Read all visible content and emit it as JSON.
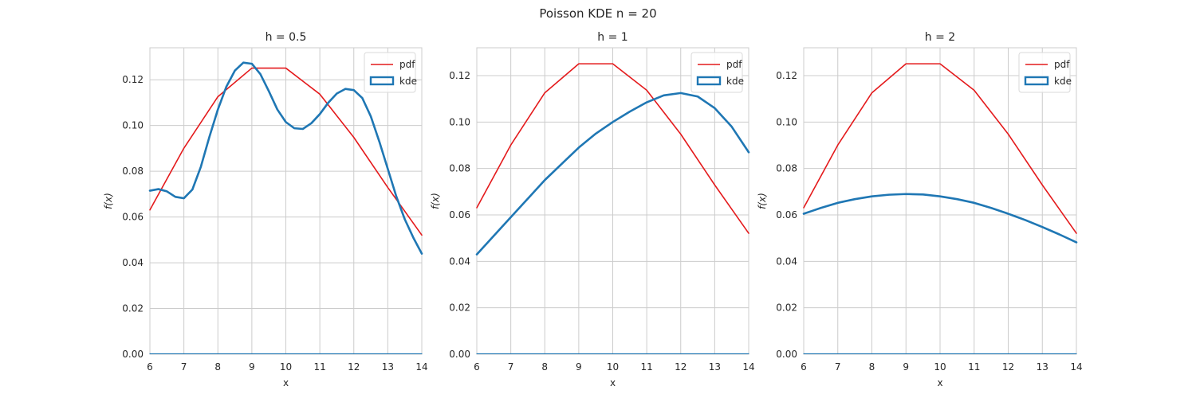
{
  "chart_data": {
    "suptitle": "Poisson KDE n = 20",
    "panels": [
      {
        "title": "h = 0.5",
        "xlabel": "x",
        "ylabel": "f(x)",
        "xlim": [
          6,
          14
        ],
        "ylim": [
          0,
          0.134
        ],
        "xticks": [
          6,
          7,
          8,
          9,
          10,
          11,
          12,
          13,
          14
        ],
        "xtick_labels": [
          "6",
          "7",
          "8",
          "9",
          "10",
          "11",
          "12",
          "13",
          "14"
        ],
        "yticks": [
          0,
          0.02,
          0.04,
          0.06,
          0.08,
          0.1,
          0.12
        ],
        "ytick_labels": [
          "0.00",
          "0.02",
          "0.04",
          "0.06",
          "0.08",
          "0.10",
          "0.12"
        ],
        "legend": [
          "pdf",
          "kde"
        ],
        "series": [
          {
            "name": "pdf",
            "type": "line",
            "x": [
              6,
              7,
              8,
              9,
              10,
              11,
              12,
              13,
              14
            ],
            "y": [
              0.0631,
              0.0901,
              0.1126,
              0.1251,
              0.1251,
              0.1137,
              0.0948,
              0.0729,
              0.0521
            ]
          },
          {
            "name": "kde",
            "type": "line",
            "x": [
              6,
              6.25,
              6.5,
              6.75,
              7,
              7.25,
              7.5,
              7.75,
              8,
              8.25,
              8.5,
              8.75,
              9,
              9.25,
              9.5,
              9.75,
              10,
              10.25,
              10.5,
              10.75,
              11,
              11.25,
              11.5,
              11.75,
              12,
              12.25,
              12.5,
              12.75,
              13,
              13.25,
              13.5,
              13.75,
              14
            ],
            "y": [
              0.0715,
              0.0722,
              0.0712,
              0.0688,
              0.0682,
              0.072,
              0.082,
              0.095,
              0.107,
              0.117,
              0.124,
              0.1275,
              0.127,
              0.1225,
              0.115,
              0.107,
              0.1015,
              0.0988,
              0.0985,
              0.101,
              0.105,
              0.11,
              0.114,
              0.116,
              0.1155,
              0.112,
              0.104,
              0.093,
              0.081,
              0.069,
              0.059,
              0.051,
              0.044
            ]
          },
          {
            "name": "baseline",
            "type": "line",
            "x": [
              6,
              14
            ],
            "y": [
              0.0002,
              0.0002
            ]
          }
        ]
      },
      {
        "title": "h = 1",
        "xlabel": "x",
        "ylabel": "f(x)",
        "xlim": [
          6,
          14
        ],
        "ylim": [
          0,
          0.132
        ],
        "xticks": [
          6,
          7,
          8,
          9,
          10,
          11,
          12,
          13,
          14
        ],
        "xtick_labels": [
          "6",
          "7",
          "8",
          "9",
          "10",
          "11",
          "12",
          "13",
          "14"
        ],
        "yticks": [
          0,
          0.02,
          0.04,
          0.06,
          0.08,
          0.1,
          0.12
        ],
        "ytick_labels": [
          "0.00",
          "0.02",
          "0.04",
          "0.06",
          "0.08",
          "0.10",
          "0.12"
        ],
        "legend": [
          "pdf",
          "kde"
        ],
        "series": [
          {
            "name": "pdf",
            "type": "line",
            "x": [
              6,
              7,
              8,
              9,
              10,
              11,
              12,
              13,
              14
            ],
            "y": [
              0.0631,
              0.0901,
              0.1126,
              0.1251,
              0.1251,
              0.1137,
              0.0948,
              0.0729,
              0.0521
            ]
          },
          {
            "name": "kde",
            "type": "line",
            "x": [
              6,
              6.5,
              7,
              7.5,
              8,
              8.5,
              9,
              9.5,
              10,
              10.5,
              11,
              11.5,
              12,
              12.5,
              13,
              13.5,
              14
            ],
            "y": [
              0.043,
              0.051,
              0.059,
              0.067,
              0.075,
              0.082,
              0.089,
              0.095,
              0.1,
              0.1045,
              0.1085,
              0.1115,
              0.1125,
              0.111,
              0.106,
              0.098,
              0.087
            ]
          },
          {
            "name": "baseline",
            "type": "line",
            "x": [
              6,
              14
            ],
            "y": [
              0.0002,
              0.0002
            ]
          }
        ]
      },
      {
        "title": "h = 2",
        "xlabel": "x",
        "ylabel": "f(x)",
        "xlim": [
          6,
          14
        ],
        "ylim": [
          0,
          0.132
        ],
        "xticks": [
          6,
          7,
          8,
          9,
          10,
          11,
          12,
          13,
          14
        ],
        "xtick_labels": [
          "6",
          "7",
          "8",
          "9",
          "10",
          "11",
          "12",
          "13",
          "14"
        ],
        "yticks": [
          0,
          0.02,
          0.04,
          0.06,
          0.08,
          0.1,
          0.12
        ],
        "ytick_labels": [
          "0.00",
          "0.02",
          "0.04",
          "0.06",
          "0.08",
          "0.10",
          "0.12"
        ],
        "legend": [
          "pdf",
          "kde"
        ],
        "series": [
          {
            "name": "pdf",
            "type": "line",
            "x": [
              6,
              7,
              8,
              9,
              10,
              11,
              12,
              13,
              14
            ],
            "y": [
              0.0631,
              0.0901,
              0.1126,
              0.1251,
              0.1251,
              0.1137,
              0.0948,
              0.0729,
              0.0521
            ]
          },
          {
            "name": "kde",
            "type": "line",
            "x": [
              6,
              6.5,
              7,
              7.5,
              8,
              8.5,
              9,
              9.5,
              10,
              10.5,
              11,
              11.5,
              12,
              12.5,
              13,
              13.5,
              14
            ],
            "y": [
              0.0605,
              0.063,
              0.0652,
              0.0668,
              0.068,
              0.0687,
              0.069,
              0.0688,
              0.068,
              0.0668,
              0.0652,
              0.063,
              0.0605,
              0.0578,
              0.0548,
              0.0516,
              0.0482
            ]
          },
          {
            "name": "baseline",
            "type": "line",
            "x": [
              6,
              14
            ],
            "y": [
              0.0002,
              0.0002
            ]
          }
        ]
      }
    ],
    "colors": {
      "pdf": "#e41a1c",
      "kde": "#1f77b4",
      "grid": "#cccccc",
      "baseline": "#1f77b4"
    },
    "type": "line"
  }
}
